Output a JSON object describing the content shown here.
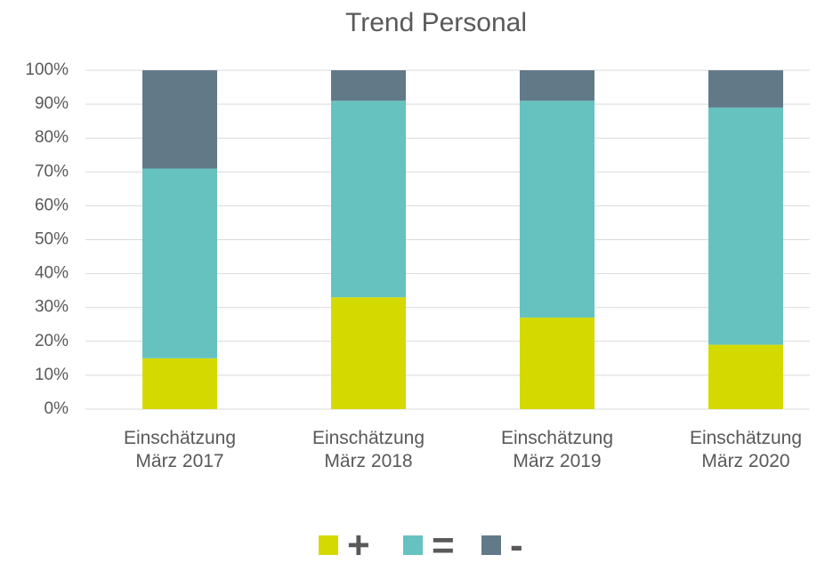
{
  "chart_data": {
    "type": "bar",
    "stacked": true,
    "title": "Trend Personal",
    "categories": [
      "Einschätzung März 2017",
      "Einschätzung März 2018",
      "Einschätzung März 2019",
      "Einschätzung März 2020"
    ],
    "series": [
      {
        "name": "+",
        "color": "#d4da00",
        "values": [
          15,
          33,
          27,
          19
        ]
      },
      {
        "name": "=",
        "color": "#66c2be",
        "values": [
          56,
          58,
          64,
          70
        ]
      },
      {
        "name": "-",
        "color": "#627a88",
        "values": [
          29,
          9,
          9,
          11
        ]
      }
    ],
    "ylim": [
      0,
      100
    ],
    "yticks": [
      {
        "value": 0,
        "label": "0%"
      },
      {
        "value": 10,
        "label": "10%"
      },
      {
        "value": 20,
        "label": "20%"
      },
      {
        "value": 30,
        "label": "30%"
      },
      {
        "value": 40,
        "label": "40%"
      },
      {
        "value": 50,
        "label": "50%"
      },
      {
        "value": 60,
        "label": "60%"
      },
      {
        "value": 70,
        "label": "70%"
      },
      {
        "value": 80,
        "label": "80%"
      },
      {
        "value": 90,
        "label": "90%"
      },
      {
        "value": 100,
        "label": "100%"
      }
    ],
    "grid": true,
    "legend": "bottom"
  }
}
